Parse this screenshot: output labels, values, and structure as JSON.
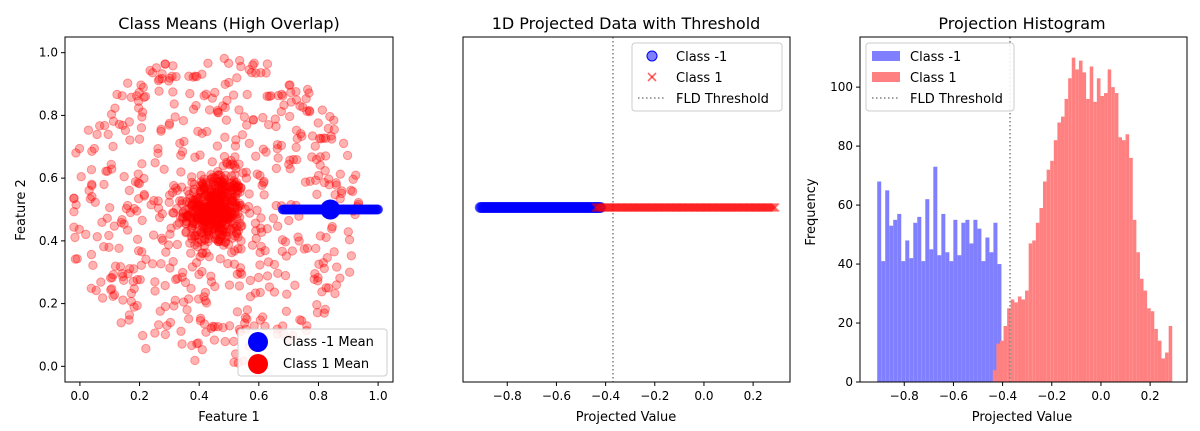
{
  "chart_data": [
    {
      "type": "scatter",
      "title": "Class Means (High Overlap)",
      "xlabel": "Feature 1",
      "ylabel": "Feature 2",
      "xlim": [
        -0.05,
        1.05
      ],
      "ylim": [
        -0.05,
        1.05
      ],
      "xticks": [
        "0.0",
        "0.2",
        "0.4",
        "0.6",
        "0.8",
        "1.0"
      ],
      "yticks": [
        "0.0",
        "0.2",
        "0.4",
        "0.6",
        "0.8",
        "1.0"
      ],
      "legend_position": "lower-right",
      "series": [
        {
          "name": "Class -1",
          "color": "#0000ff",
          "note": "dense horizontal band of points at y=0.5 from x≈0.68 to x=1.0",
          "x_range": [
            0.68,
            1.0
          ],
          "y": 0.5
        },
        {
          "name": "Class 1",
          "color": "#ff0000",
          "note": "semi-transparent scattered points, dense cluster around (0.45, 0.5), spread over x 0.0–0.95, y 0.0–1.0",
          "center": [
            0.45,
            0.5
          ]
        },
        {
          "name": "Class -1 Mean",
          "color": "#0000ff",
          "x": 0.84,
          "y": 0.5
        },
        {
          "name": "Class 1 Mean",
          "color": "#ff0000",
          "x": 0.45,
          "y": 0.5
        }
      ]
    },
    {
      "type": "scatter",
      "title": "1D Projected Data with Threshold",
      "xlabel": "Projected Value",
      "xlim": [
        -0.98,
        0.35
      ],
      "xticks": [
        -0.8,
        -0.6,
        -0.4,
        -0.2,
        0.0,
        0.2
      ],
      "xtick_labels": [
        "−0.8",
        "−0.6",
        "−0.4",
        "−0.2",
        "0.0",
        "0.2"
      ],
      "threshold": -0.37,
      "legend_position": "top-right",
      "series": [
        {
          "name": "Class -1",
          "marker": "circle",
          "color": "#0000ff",
          "x_range": [
            -0.91,
            -0.42
          ],
          "y": 0
        },
        {
          "name": "Class 1",
          "marker": "x",
          "color": "#ff0000",
          "x_range": [
            -0.44,
            0.29
          ],
          "y": 0
        },
        {
          "name": "FLD Threshold",
          "style": "dotted",
          "color": "#808080",
          "x": -0.37
        }
      ]
    },
    {
      "type": "bar",
      "title": "Projection Histogram",
      "xlabel": "Projected Value",
      "ylabel": "Frequency",
      "xlim": [
        -0.98,
        0.35
      ],
      "ylim": [
        0,
        117
      ],
      "xticks": [
        -0.8,
        -0.6,
        -0.4,
        -0.2,
        0.0,
        0.2
      ],
      "xtick_labels": [
        "−0.8",
        "−0.6",
        "−0.4",
        "−0.2",
        "0.0",
        "0.2"
      ],
      "yticks": [
        0,
        20,
        40,
        60,
        80,
        100
      ],
      "threshold": -0.37,
      "legend_position": "top-left",
      "series": [
        {
          "name": "Class -1",
          "color": "#8080ff",
          "bin_start": -0.91,
          "bin_width": 0.0163,
          "values": [
            68,
            41,
            65,
            53,
            55,
            57,
            41,
            48,
            42,
            54,
            56,
            41,
            62,
            45,
            73,
            43,
            57,
            44,
            41,
            55,
            43,
            54,
            55,
            47,
            55,
            52,
            41,
            49,
            44,
            54,
            40
          ]
        },
        {
          "name": "Class 1",
          "color": "#ff8080",
          "bin_start": -0.44,
          "bin_width": 0.0146,
          "values": [
            4,
            13,
            14,
            19,
            25,
            28,
            27,
            29,
            28,
            31,
            47,
            48,
            54,
            59,
            68,
            72,
            75,
            82,
            88,
            90,
            96,
            103,
            110,
            106,
            109,
            105,
            96,
            107,
            95,
            103,
            97,
            98,
            106,
            100,
            98,
            83,
            82,
            84,
            76,
            55,
            44,
            35,
            31,
            25,
            24,
            18,
            14,
            8,
            10,
            19
          ]
        },
        {
          "name": "FLD Threshold",
          "style": "dotted",
          "color": "#808080",
          "x": -0.37
        }
      ]
    }
  ]
}
